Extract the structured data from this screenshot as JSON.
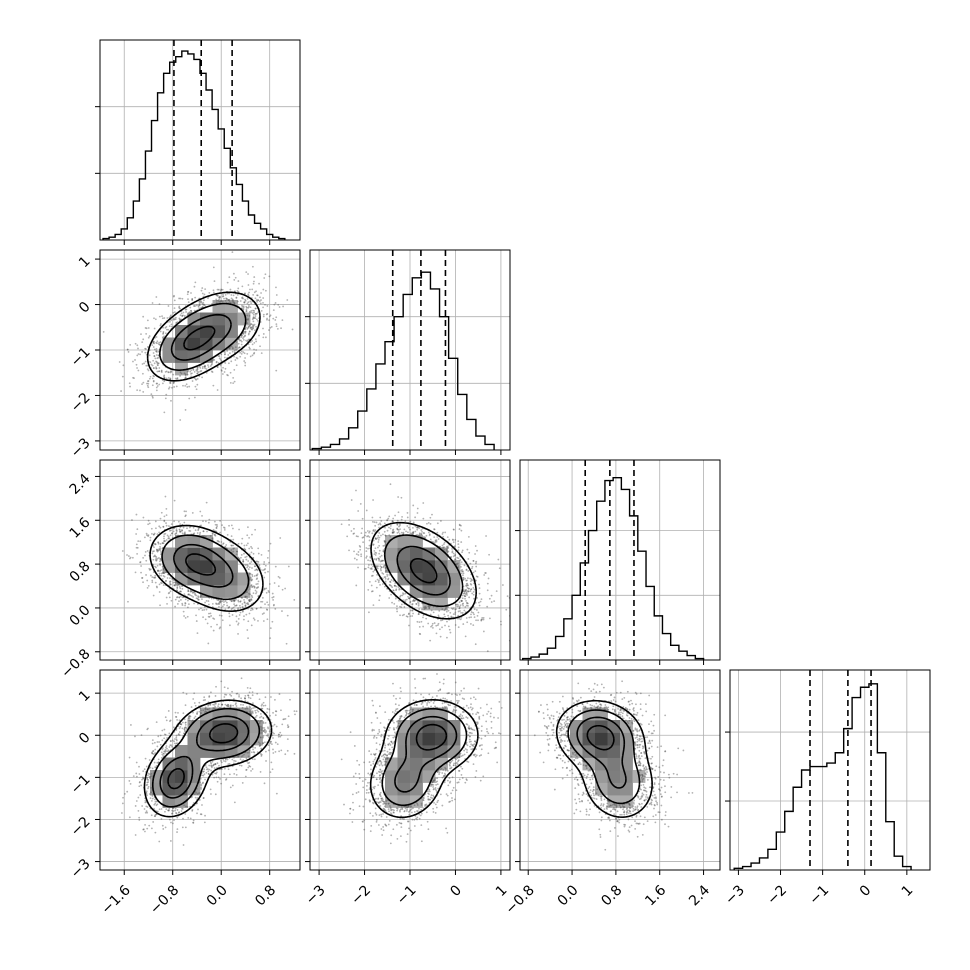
{
  "chart_data": {
    "type": "corner",
    "dimensions": 4,
    "grid": true,
    "axes": [
      {
        "index": 0,
        "range": [
          -2.0,
          1.3
        ],
        "ticks": [
          -1.6,
          -0.8,
          0.0,
          0.8
        ],
        "tick_labels": [
          "−1.6",
          "−0.8",
          "0.0",
          "0.8"
        ],
        "quantiles": [
          -0.78,
          -0.33,
          0.18
        ],
        "mean": -0.33,
        "sd": 0.47
      },
      {
        "index": 1,
        "range": [
          -3.2,
          1.2
        ],
        "ticks": [
          -3,
          -2,
          -1,
          0,
          1
        ],
        "tick_labels": [
          "−3",
          "−2",
          "−1",
          "0",
          "1"
        ],
        "quantiles": [
          -1.38,
          -0.76,
          -0.22
        ],
        "mean": -0.76,
        "sd": 0.58
      },
      {
        "index": 2,
        "range": [
          -0.95,
          2.7
        ],
        "ticks": [
          -0.8,
          0.0,
          0.8,
          1.6,
          2.4
        ],
        "tick_labels": [
          "−0.8",
          "0.0",
          "0.8",
          "1.6",
          "2.4"
        ],
        "quantiles": [
          0.24,
          0.69,
          1.13
        ],
        "mean": 0.69,
        "sd": 0.44
      },
      {
        "index": 3,
        "range": [
          -3.2,
          1.55
        ],
        "ticks": [
          -3,
          -2,
          -1,
          0,
          1
        ],
        "tick_labels": [
          "−3",
          "−2",
          "−1",
          "0",
          "1"
        ],
        "quantiles": [
          -1.3,
          -0.4,
          0.15
        ],
        "mean": -0.4,
        "sd": 0.7
      }
    ],
    "diagonal_histograms": [
      {
        "axis": 0,
        "bin_edges": [
          -1.95,
          -1.85,
          -1.75,
          -1.65,
          -1.55,
          -1.45,
          -1.35,
          -1.25,
          -1.15,
          -1.05,
          -0.95,
          -0.85,
          -0.75,
          -0.65,
          -0.55,
          -0.45,
          -0.35,
          -0.25,
          -0.15,
          -0.05,
          0.05,
          0.15,
          0.25,
          0.35,
          0.45,
          0.55,
          0.65,
          0.75,
          0.85,
          0.95,
          1.05
        ],
        "counts": [
          0.5,
          1,
          2,
          4,
          8,
          14,
          22,
          32,
          43,
          53,
          60,
          64,
          66,
          68,
          67,
          65,
          60,
          54,
          47,
          40,
          33,
          26,
          20,
          14,
          9,
          6,
          4,
          2,
          1,
          0.5
        ],
        "ylim": [
          0,
          72
        ],
        "yticks": [
          24,
          48
        ]
      },
      {
        "axis": 1,
        "bin_edges": [
          -3.15,
          -2.95,
          -2.75,
          -2.55,
          -2.35,
          -2.15,
          -1.95,
          -1.75,
          -1.55,
          -1.35,
          -1.15,
          -0.95,
          -0.75,
          -0.55,
          -0.35,
          -0.15,
          0.05,
          0.25,
          0.45,
          0.65,
          0.85
        ],
        "counts": [
          0.5,
          1,
          2,
          4,
          8,
          14,
          22,
          31,
          39,
          48,
          56,
          62,
          64,
          58,
          48,
          33,
          20,
          11,
          5,
          2
        ],
        "ylim": [
          0,
          72
        ],
        "yticks": [
          24,
          48
        ]
      },
      {
        "axis": 2,
        "bin_edges": [
          -0.9,
          -0.75,
          -0.6,
          -0.45,
          -0.3,
          -0.15,
          0.0,
          0.15,
          0.3,
          0.45,
          0.6,
          0.75,
          0.9,
          1.05,
          1.2,
          1.35,
          1.5,
          1.65,
          1.8,
          1.95,
          2.1,
          2.25,
          2.4
        ],
        "counts": [
          0.5,
          1,
          2,
          4,
          8,
          14,
          22,
          33,
          44,
          54,
          61,
          62,
          58,
          49,
          37,
          25,
          15,
          9,
          5,
          3,
          1.5,
          0.5
        ],
        "ylim": [
          0,
          68
        ],
        "yticks": [
          22,
          44
        ]
      },
      {
        "axis": 3,
        "bin_edges": [
          -3.1,
          -2.9,
          -2.7,
          -2.5,
          -2.3,
          -2.1,
          -1.9,
          -1.7,
          -1.5,
          -1.3,
          -1.1,
          -0.9,
          -0.7,
          -0.5,
          -0.3,
          -0.1,
          0.1,
          0.3,
          0.5,
          0.7,
          0.9,
          1.1
        ],
        "counts": [
          0.5,
          1,
          2,
          3.5,
          6,
          11,
          17,
          24,
          29,
          30,
          30,
          31,
          34,
          41,
          50,
          53,
          54,
          34,
          14,
          4,
          1
        ],
        "ylim": [
          0,
          58
        ],
        "yticks": [
          20,
          40
        ]
      }
    ],
    "pairs": [
      {
        "row": 1,
        "col": 0,
        "modes": [
          {
            "mx": -0.55,
            "my": -0.9,
            "sx": 0.36,
            "sy": 0.42,
            "rho": 0.35,
            "w": 0.55
          },
          {
            "mx": 0.0,
            "my": -0.45,
            "sx": 0.38,
            "sy": 0.42,
            "rho": 0.25,
            "w": 0.45
          }
        ]
      },
      {
        "row": 2,
        "col": 0,
        "modes": [
          {
            "mx": -0.5,
            "my": 0.88,
            "sx": 0.36,
            "sy": 0.33,
            "rho": -0.15,
            "w": 0.55
          },
          {
            "mx": 0.05,
            "my": 0.55,
            "sx": 0.38,
            "sy": 0.36,
            "rho": -0.2,
            "w": 0.45
          }
        ]
      },
      {
        "row": 2,
        "col": 1,
        "modes": [
          {
            "mx": -0.7,
            "my": 0.68,
            "sx": 0.58,
            "sy": 0.44,
            "rho": -0.45,
            "w": 1.0
          }
        ]
      },
      {
        "row": 3,
        "col": 0,
        "modes": [
          {
            "mx": 0.05,
            "my": 0.05,
            "sx": 0.42,
            "sy": 0.42,
            "rho": 0.1,
            "w": 0.58
          },
          {
            "mx": -0.75,
            "my": -1.05,
            "sx": 0.28,
            "sy": 0.48,
            "rho": 0.2,
            "w": 0.42
          }
        ]
      },
      {
        "row": 3,
        "col": 1,
        "modes": [
          {
            "mx": -0.5,
            "my": 0.0,
            "sx": 0.52,
            "sy": 0.44,
            "rho": 0.0,
            "w": 0.6
          },
          {
            "mx": -1.1,
            "my": -1.1,
            "sx": 0.45,
            "sy": 0.5,
            "rho": 0.1,
            "w": 0.4
          }
        ]
      },
      {
        "row": 3,
        "col": 2,
        "modes": [
          {
            "mx": 0.5,
            "my": 0.0,
            "sx": 0.4,
            "sy": 0.42,
            "rho": -0.1,
            "w": 0.6
          },
          {
            "mx": 0.85,
            "my": -1.1,
            "sx": 0.36,
            "sy": 0.5,
            "rho": -0.1,
            "w": 0.4
          }
        ]
      }
    ],
    "contour_levels_sigma": [
      0.5,
      1.0,
      1.5,
      2.0
    ]
  }
}
